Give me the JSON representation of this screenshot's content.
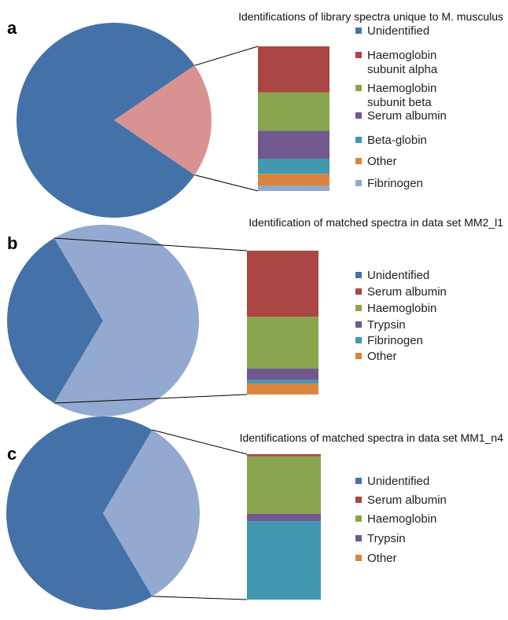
{
  "chart_data": [
    {
      "type": "bar-of-pie",
      "panel": "a",
      "title": "Identifications of library spectra unique to M. musculus",
      "pie": [
        {
          "label": "Unidentified",
          "value": 81,
          "color": "#4472a8"
        },
        {
          "label": "",
          "value": 19,
          "color": "#d79291"
        }
      ],
      "bar": {
        "categories": [
          "Haemoglobin subunit alpha",
          "Haemoglobin subunit beta",
          "Serum albumin",
          "Beta-globin",
          "Other",
          "Fibrinogen"
        ],
        "values": [
          31,
          26,
          19,
          10,
          8,
          3.5
        ]
      },
      "legend": [
        {
          "label": [
            "Unidentified"
          ],
          "color": "#4472a8"
        },
        {
          "label": [
            "Haemoglobin",
            "subunit alpha"
          ],
          "color": "#aa4643"
        },
        {
          "label": [
            "Haemoglobin",
            "subunit beta"
          ],
          "color": "#89a54e"
        },
        {
          "label": [
            "Serum albumin"
          ],
          "color": "#71588f"
        },
        {
          "label": [
            "Beta-globin"
          ],
          "color": "#4198af"
        },
        {
          "label": [
            "Other"
          ],
          "color": "#db843d"
        },
        {
          "label": [
            "Fibrinogen"
          ],
          "color": "#93a9cf"
        }
      ]
    },
    {
      "type": "bar-of-pie",
      "panel": "b",
      "title": "Identification of matched spectra in data set MM2_l1",
      "pie": [
        {
          "label": "Unidentified",
          "value": 33,
          "color": "#4472a8"
        },
        {
          "label": "",
          "value": 67,
          "color": "#93a9cf"
        }
      ],
      "bar": {
        "categories": [
          "Serum albumin",
          "Haemoglobin",
          "Trypsin",
          "Fibrinogen",
          "Other"
        ],
        "values": [
          46,
          36,
          8,
          2.5,
          7.5
        ]
      },
      "legend": [
        {
          "label": [
            "Unidentified"
          ],
          "color": "#4472a8"
        },
        {
          "label": [
            "Serum albumin"
          ],
          "color": "#aa4643"
        },
        {
          "label": [
            "Haemoglobin"
          ],
          "color": "#89a54e"
        },
        {
          "label": [
            "Trypsin"
          ],
          "color": "#71588f"
        },
        {
          "label": [
            "Fibrinogen"
          ],
          "color": "#4198af"
        },
        {
          "label": [
            "Other"
          ],
          "color": "#db843d"
        }
      ]
    },
    {
      "type": "bar-of-pie",
      "panel": "c",
      "title": "Identifications of matched spectra in data set MM1_n4",
      "pie": [
        {
          "label": "Unidentified",
          "value": 67,
          "color": "#4472a8"
        },
        {
          "label": "",
          "value": 33,
          "color": "#93a9cf"
        }
      ],
      "bar": {
        "categories": [
          "Serum albumin",
          "Haemoglobin",
          "Trypsin",
          "Other"
        ],
        "values": [
          1.5,
          39.5,
          5,
          54
        ]
      },
      "legend": [
        {
          "label": [
            "Unidentified"
          ],
          "color": "#4472a8"
        },
        {
          "label": [
            "Serum albumin"
          ],
          "color": "#aa4643"
        },
        {
          "label": [
            "Haemoglobin"
          ],
          "color": "#89a54e"
        },
        {
          "label": [
            "Trypsin"
          ],
          "color": "#71588f"
        },
        {
          "label": [
            "Other"
          ],
          "color": "#db843d"
        }
      ]
    }
  ],
  "bar_colors": [
    "#aa4643",
    "#89a54e",
    "#71588f",
    "#4198af",
    "#db843d",
    "#93a9cf"
  ]
}
